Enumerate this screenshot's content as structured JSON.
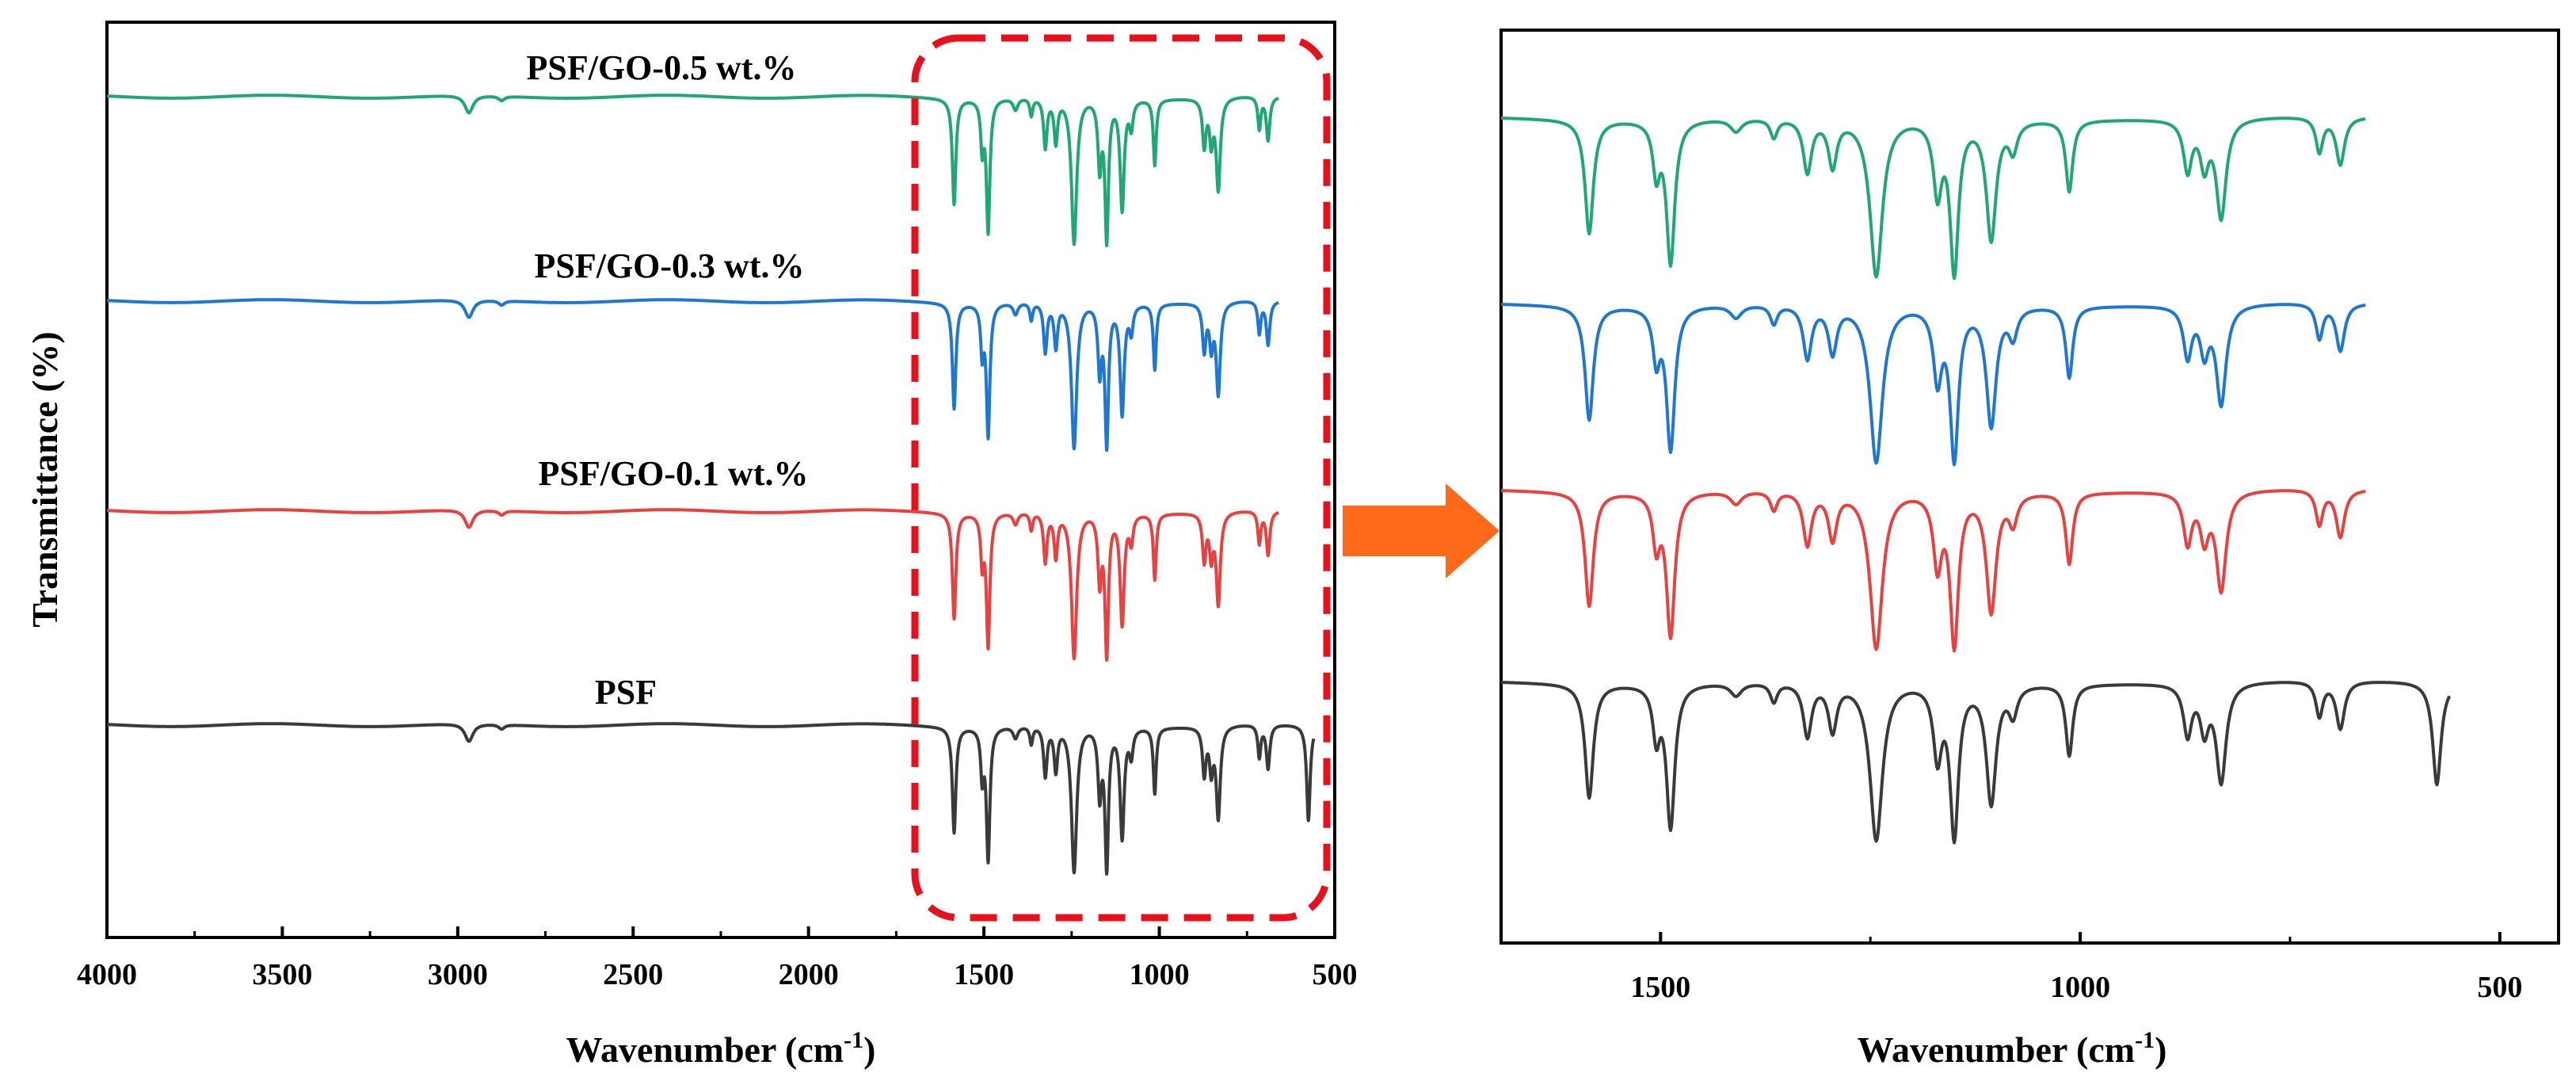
{
  "chart_data": [
    {
      "type": "line",
      "panel": "full-spectrum",
      "xlabel": "Wavenumber (cm",
      "xlabel_superscript": "-1",
      "xlabel_suffix": ")",
      "ylabel": "Transmittance (%)",
      "xlim": [
        4000,
        500
      ],
      "x_reversed": true,
      "xticks": [
        4000,
        3500,
        3000,
        2500,
        2000,
        1500,
        1000,
        500
      ],
      "xtick_labels": [
        "4000",
        "3500",
        "3000",
        "2500",
        "2000",
        "1500",
        "1000",
        "500"
      ],
      "highlight_region": {
        "from": 1680,
        "to": 500,
        "style": "red dashed rounded box"
      },
      "y_units": "arbitrary (offset traces, baseline 0, peaks negative)",
      "series": [
        {
          "name": "PSF/GO-0.5 wt.%",
          "color": "#1fa774",
          "offset": 3,
          "x_end": 660
        },
        {
          "name": "PSF/GO-0.3 wt.%",
          "color": "#1f77d4",
          "offset": 2,
          "x_end": 660
        },
        {
          "name": "PSF/GO-0.1 wt.%",
          "color": "#e8413f",
          "offset": 1,
          "x_end": 660
        },
        {
          "name": "PSF",
          "color": "#3a3a3a",
          "offset": 0,
          "x_end": 560
        }
      ],
      "peaks": [
        {
          "x": 2968,
          "depth": 0.12,
          "width": 14
        },
        {
          "x": 2875,
          "depth": 0.03,
          "width": 10
        },
        {
          "x": 1585,
          "depth": 0.72,
          "width": 6
        },
        {
          "x": 1505,
          "depth": 0.32,
          "width": 5
        },
        {
          "x": 1488,
          "depth": 0.9,
          "width": 6
        },
        {
          "x": 1410,
          "depth": 0.08,
          "width": 8
        },
        {
          "x": 1365,
          "depth": 0.12,
          "width": 5
        },
        {
          "x": 1325,
          "depth": 0.34,
          "width": 6
        },
        {
          "x": 1295,
          "depth": 0.3,
          "width": 6
        },
        {
          "x": 1243,
          "depth": 1.0,
          "width": 9
        },
        {
          "x": 1170,
          "depth": 0.45,
          "width": 6
        },
        {
          "x": 1150,
          "depth": 0.95,
          "width": 6
        },
        {
          "x": 1106,
          "depth": 0.75,
          "width": 7
        },
        {
          "x": 1080,
          "depth": 0.18,
          "width": 6
        },
        {
          "x": 1013,
          "depth": 0.45,
          "width": 5
        },
        {
          "x": 872,
          "depth": 0.32,
          "width": 6
        },
        {
          "x": 852,
          "depth": 0.28,
          "width": 6
        },
        {
          "x": 832,
          "depth": 0.62,
          "width": 7
        },
        {
          "x": 715,
          "depth": 0.22,
          "width": 5
        },
        {
          "x": 690,
          "depth": 0.3,
          "width": 6
        },
        {
          "x": 575,
          "depth": 0.65,
          "width": 6
        }
      ]
    },
    {
      "type": "line",
      "panel": "zoomed-fingerprint-region",
      "xlabel": "Wavenumber (cm",
      "xlabel_superscript": "-1",
      "xlabel_suffix": ")",
      "xlim": [
        1690,
        430
      ],
      "x_reversed": true,
      "xticks": [
        1500,
        1000,
        500
      ],
      "xtick_labels": [
        "1500",
        "1000",
        "500"
      ],
      "series": [
        {
          "name": "PSF/GO-0.5 wt.%",
          "color": "#1fa774",
          "offset": 3,
          "x_end": 660
        },
        {
          "name": "PSF/GO-0.3 wt.%",
          "color": "#1f77d4",
          "offset": 2,
          "x_end": 660
        },
        {
          "name": "PSF/GO-0.1 wt.%",
          "color": "#e8413f",
          "offset": 1,
          "x_end": 660
        },
        {
          "name": "PSF",
          "color": "#3a3a3a",
          "offset": 0,
          "x_end": 560
        }
      ]
    }
  ],
  "annotations": {
    "arrow_color": "#ff6a1a",
    "arrow_meaning": "zoom into highlighted region",
    "highlight_color": "#e8101a"
  }
}
